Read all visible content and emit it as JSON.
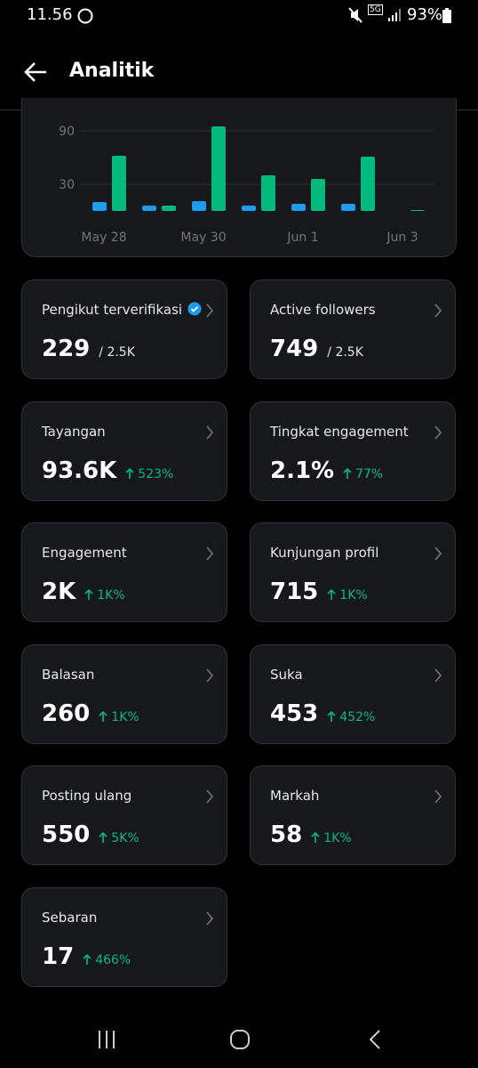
{
  "status_bar": {
    "time": "11.56",
    "network": "5G",
    "battery": "93%"
  },
  "header": {
    "title": "Analitik"
  },
  "chart": {
    "type": "bar",
    "categories": [
      "May 28",
      null,
      "May 30",
      null,
      "Jun 1",
      null,
      "Jun 3"
    ],
    "series": [
      {
        "color": "#1d9bf0",
        "values": [
          10,
          6,
          11,
          6,
          8,
          8,
          null
        ]
      },
      {
        "color": "#00ba7c",
        "values": [
          62,
          6,
          95,
          40,
          36,
          61,
          1
        ]
      }
    ],
    "ylim": [
      0,
      100
    ],
    "yticks": [
      30,
      90
    ],
    "grid": true
  },
  "cards": [
    {
      "label": "Pengikut terverifikasi",
      "verified": true,
      "value": "229",
      "total": "/ 2.5K"
    },
    {
      "label": "Active followers",
      "value": "749",
      "total": "/ 2.5K"
    },
    {
      "label": "Tayangan",
      "value": "93.6K",
      "change": "523%"
    },
    {
      "label": "Tingkat engagement",
      "value": "2.1%",
      "change": "77%"
    },
    {
      "label": "Engagement",
      "value": "2K",
      "change": "1K%"
    },
    {
      "label": "Kunjungan profil",
      "value": "715",
      "change": "1K%"
    },
    {
      "label": "Balasan",
      "value": "260",
      "change": "1K%"
    },
    {
      "label": "Suka",
      "value": "453",
      "change": "452%"
    },
    {
      "label": "Posting ulang",
      "value": "550",
      "change": "5K%"
    },
    {
      "label": "Markah",
      "value": "58",
      "change": "1K%"
    },
    {
      "label": "Sebaran",
      "value": "17",
      "change": "466%"
    }
  ]
}
